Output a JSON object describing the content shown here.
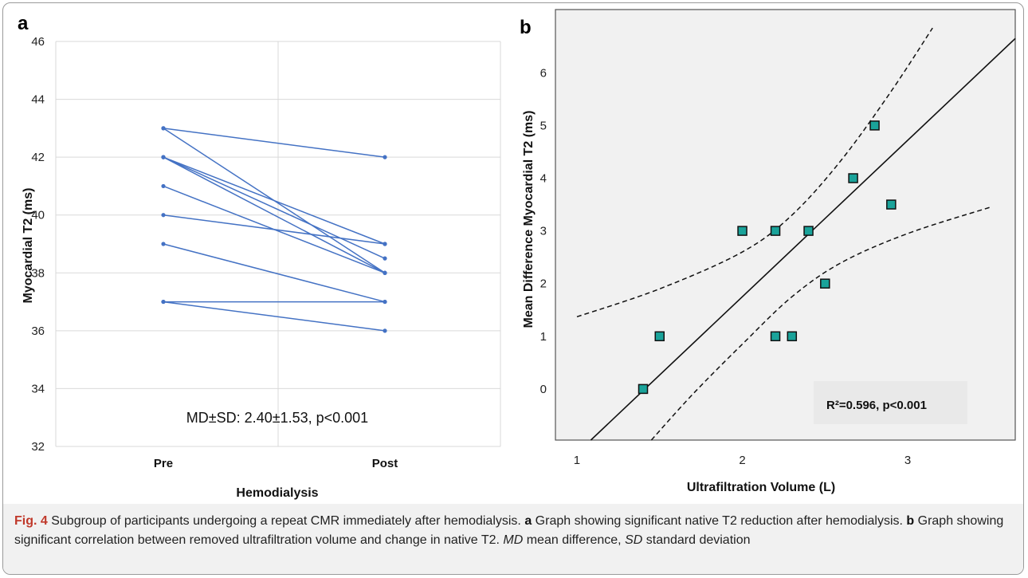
{
  "chart_data": [
    {
      "panel": "a",
      "type": "line",
      "ylabel": "Myocardial T2 (ms)",
      "xlabel": "Hemodialysis",
      "categories": [
        "Pre",
        "Post"
      ],
      "ylim": [
        32,
        46
      ],
      "yticks": [
        32,
        34,
        36,
        38,
        40,
        42,
        44,
        46
      ],
      "grid": true,
      "series": [
        {
          "values": [
            43,
            42
          ]
        },
        {
          "values": [
            43,
            38
          ]
        },
        {
          "values": [
            42,
            39
          ]
        },
        {
          "values": [
            42,
            38.5
          ]
        },
        {
          "values": [
            42,
            38
          ]
        },
        {
          "values": [
            41,
            38
          ]
        },
        {
          "values": [
            40,
            39
          ]
        },
        {
          "values": [
            39,
            37
          ]
        },
        {
          "values": [
            37,
            37
          ]
        },
        {
          "values": [
            37,
            36
          ]
        }
      ],
      "line_color": "#4472c4",
      "annotation": "MD±SD: 2.40±1.53, p<0.001"
    },
    {
      "panel": "b",
      "type": "scatter",
      "xlabel": "Ultrafiltration Volume (L)",
      "ylabel": "Mean Difference Myocardial T2 (ms)",
      "xlim": [
        0.87,
        3.65
      ],
      "ylim": [
        -0.97,
        7.2
      ],
      "xticks": [
        1,
        2,
        3
      ],
      "yticks": [
        0,
        1,
        2,
        3,
        4,
        5,
        6
      ],
      "grid": false,
      "points": [
        {
          "x": 1.4,
          "y": 0
        },
        {
          "x": 1.5,
          "y": 1
        },
        {
          "x": 2.0,
          "y": 3
        },
        {
          "x": 2.2,
          "y": 3
        },
        {
          "x": 2.2,
          "y": 1
        },
        {
          "x": 2.3,
          "y": 1
        },
        {
          "x": 2.4,
          "y": 3
        },
        {
          "x": 2.5,
          "y": 2
        },
        {
          "x": 2.67,
          "y": 4
        },
        {
          "x": 2.8,
          "y": 5
        },
        {
          "x": 2.9,
          "y": 3.5
        }
      ],
      "fit_line": {
        "slope": 2.97,
        "intercept": -4.19
      },
      "ci_upper": [
        [
          1.0,
          1.37
        ],
        [
          1.5,
          1.9
        ],
        [
          2.0,
          2.6
        ],
        [
          2.3,
          3.3
        ],
        [
          2.6,
          4.35
        ],
        [
          2.9,
          5.65
        ],
        [
          3.15,
          6.85
        ]
      ],
      "ci_lower": [
        [
          1.45,
          -0.97
        ],
        [
          1.7,
          -0.1
        ],
        [
          2.0,
          0.85
        ],
        [
          2.3,
          1.75
        ],
        [
          2.6,
          2.4
        ],
        [
          3.0,
          2.95
        ],
        [
          3.5,
          3.45
        ]
      ],
      "marker_color": "#1aa39a",
      "annotation": "R²=0.596, p<0.001"
    }
  ],
  "panel_a": {
    "letter": "a"
  },
  "panel_b": {
    "letter": "b"
  },
  "caption": {
    "fig_label": "Fig. 4",
    "text1": "  Subgroup of participants undergoing a repeat CMR immediately after hemodialysis. ",
    "a_label": "a",
    "text2": " Graph showing significant native T2 reduction after hemodialysis. ",
    "b_label": "b",
    "text3": " Graph showing significant correlation between removed ultrafiltration volume and change in native T2. ",
    "md_abbrev": "MD",
    "md_text": " mean difference, ",
    "sd_abbrev": "SD",
    "sd_text": " standard deviation"
  }
}
